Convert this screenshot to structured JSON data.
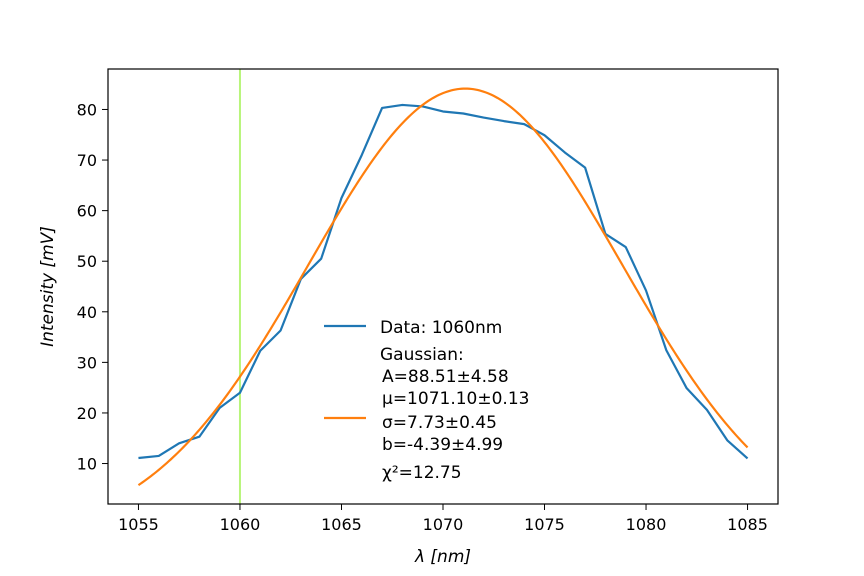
{
  "chart_data": {
    "type": "line",
    "title": "",
    "xlabel": "λ [nm]",
    "ylabel": "Intensity [mV]",
    "xlim": [
      1053.5,
      1086.5
    ],
    "ylim": [
      2,
      88
    ],
    "xticks": [
      1055,
      1060,
      1065,
      1070,
      1075,
      1080,
      1085
    ],
    "yticks": [
      10,
      20,
      30,
      40,
      50,
      60,
      70,
      80
    ],
    "grid": false,
    "legend_placement": "center-bottom",
    "vline": {
      "x": 1060,
      "color": "#b8f57a"
    },
    "series": [
      {
        "name": "Data: 1060nm",
        "color": "#1f77b4",
        "x": [
          1055,
          1056,
          1057,
          1058,
          1059,
          1060,
          1061,
          1062,
          1063,
          1064,
          1065,
          1066,
          1067,
          1068,
          1069,
          1070,
          1071,
          1072,
          1073,
          1074,
          1075,
          1076,
          1077,
          1078,
          1079,
          1080,
          1081,
          1082,
          1083,
          1084,
          1085
        ],
        "y": [
          11.1,
          11.5,
          14.0,
          15.3,
          21.0,
          24.0,
          32.3,
          36.3,
          46.5,
          50.5,
          62.5,
          71.0,
          80.3,
          80.9,
          80.6,
          79.6,
          79.2,
          78.4,
          77.7,
          77.1,
          74.9,
          71.5,
          68.5,
          55.4,
          52.8,
          44.2,
          32.4,
          24.9,
          20.6,
          14.6,
          11.0
        ]
      },
      {
        "name": "Gaussian:",
        "color": "#ff7f0e",
        "model": {
          "A": 88.51,
          "mu": 1071.1,
          "sigma": 7.73,
          "b": -4.39
        },
        "x_range": [
          1055,
          1085
        ]
      }
    ],
    "legend": {
      "entries": [
        "Data: 1060nm",
        "Gaussian:"
      ],
      "fit_lines": [
        " A=88.51±4.58",
        "μ=1071.10±0.13",
        "σ=7.73±0.45",
        " b=-4.39±4.99",
        "χ²=12.75"
      ]
    }
  }
}
